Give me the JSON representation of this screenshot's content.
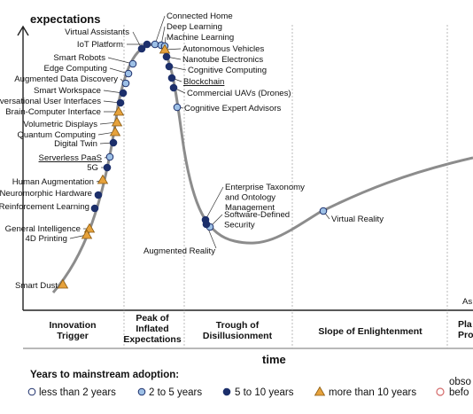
{
  "y_axis_label": "expectations",
  "x_axis_label": "time",
  "phases": [
    {
      "key": "innovation",
      "lines": [
        "Innovation",
        "Trigger"
      ]
    },
    {
      "key": "peak",
      "lines": [
        "Peak of",
        "Inflated",
        "Expectations"
      ]
    },
    {
      "key": "trough",
      "lines": [
        "Trough of",
        "Disillusionment"
      ]
    },
    {
      "key": "slope",
      "lines": [
        "Slope of Enlightenment"
      ]
    },
    {
      "key": "plateau",
      "lines": [
        "Pla",
        "Pro"
      ]
    }
  ],
  "legend": {
    "title": "Years to mainstream adoption:",
    "items": [
      {
        "key": "lt2",
        "label": "less than 2 years"
      },
      {
        "key": "2to5",
        "label": "2 to 5 years"
      },
      {
        "key": "5to10",
        "label": "5 to 10 years"
      },
      {
        "key": "gt10",
        "label": "more than 10 years"
      },
      {
        "key": "obsolete",
        "lines": [
          "obso",
          "befo"
        ]
      }
    ]
  },
  "edge_text": "As",
  "technologies": [
    {
      "label": "Connected Home",
      "category": "2to5"
    },
    {
      "label": "Deep Learning",
      "category": "2to5"
    },
    {
      "label": "Machine Learning",
      "category": "2to5"
    },
    {
      "label": "Virtual Assistants",
      "category": "5to10"
    },
    {
      "label": "IoT Platform",
      "category": "5to10"
    },
    {
      "label": "Autonomous Vehicles",
      "category": "gt10"
    },
    {
      "label": "Nanotube Electronics",
      "category": "5to10"
    },
    {
      "label": "Smart Robots",
      "category": "2to5"
    },
    {
      "label": "Cognitive Computing",
      "category": "5to10"
    },
    {
      "label": "Edge Computing",
      "category": "2to5"
    },
    {
      "label": "Blockchain",
      "category": "5to10",
      "underline": true
    },
    {
      "label": "Augmented Data Discovery",
      "category": "2to5"
    },
    {
      "label": "Commercial UAVs (Drones)",
      "category": "5to10"
    },
    {
      "label": "Smart Workspace",
      "category": "5to10"
    },
    {
      "label": "Cognitive Expert Advisors",
      "category": "2to5"
    },
    {
      "label": "Conversational User Interfaces",
      "category": "5to10"
    },
    {
      "label": "Brain-Computer Interface",
      "category": "gt10"
    },
    {
      "label": "Volumetric Displays",
      "category": "gt10"
    },
    {
      "label": "Quantum Computing",
      "category": "gt10"
    },
    {
      "label": "Digital Twin",
      "category": "5to10"
    },
    {
      "label": "Serverless PaaS",
      "category": "2to5",
      "underline": true
    },
    {
      "label": "5G",
      "category": "5to10"
    },
    {
      "label": "Human Augmentation",
      "category": "gt10"
    },
    {
      "label": "Neuromorphic Hardware",
      "category": "5to10"
    },
    {
      "label": "Reinforcement Learning",
      "category": "5to10"
    },
    {
      "label": "General Intelligence",
      "category": "gt10"
    },
    {
      "label": "4D Printing",
      "category": "gt10"
    },
    {
      "label": "Smart Dust",
      "category": "gt10"
    },
    {
      "label": "Enterprise Taxonomy and Ontology Management",
      "lines": [
        "Enterprise Taxonomy",
        "and Ontology",
        "Management"
      ],
      "category": "5to10"
    },
    {
      "label": "Software-Defined Security",
      "lines": [
        "Software-Defined",
        "Security"
      ],
      "category": "2to5"
    },
    {
      "label": "Augmented Reality",
      "category": "5to10"
    },
    {
      "label": "Virtual Reality",
      "category": "2to5"
    }
  ],
  "colors": {
    "curve": "#8c8c8c",
    "dark_dot": "#1c2f6b",
    "light_dot": "#9dc0e6",
    "triangle": "#e6a23c",
    "obsolete": "#d46a6a"
  }
}
